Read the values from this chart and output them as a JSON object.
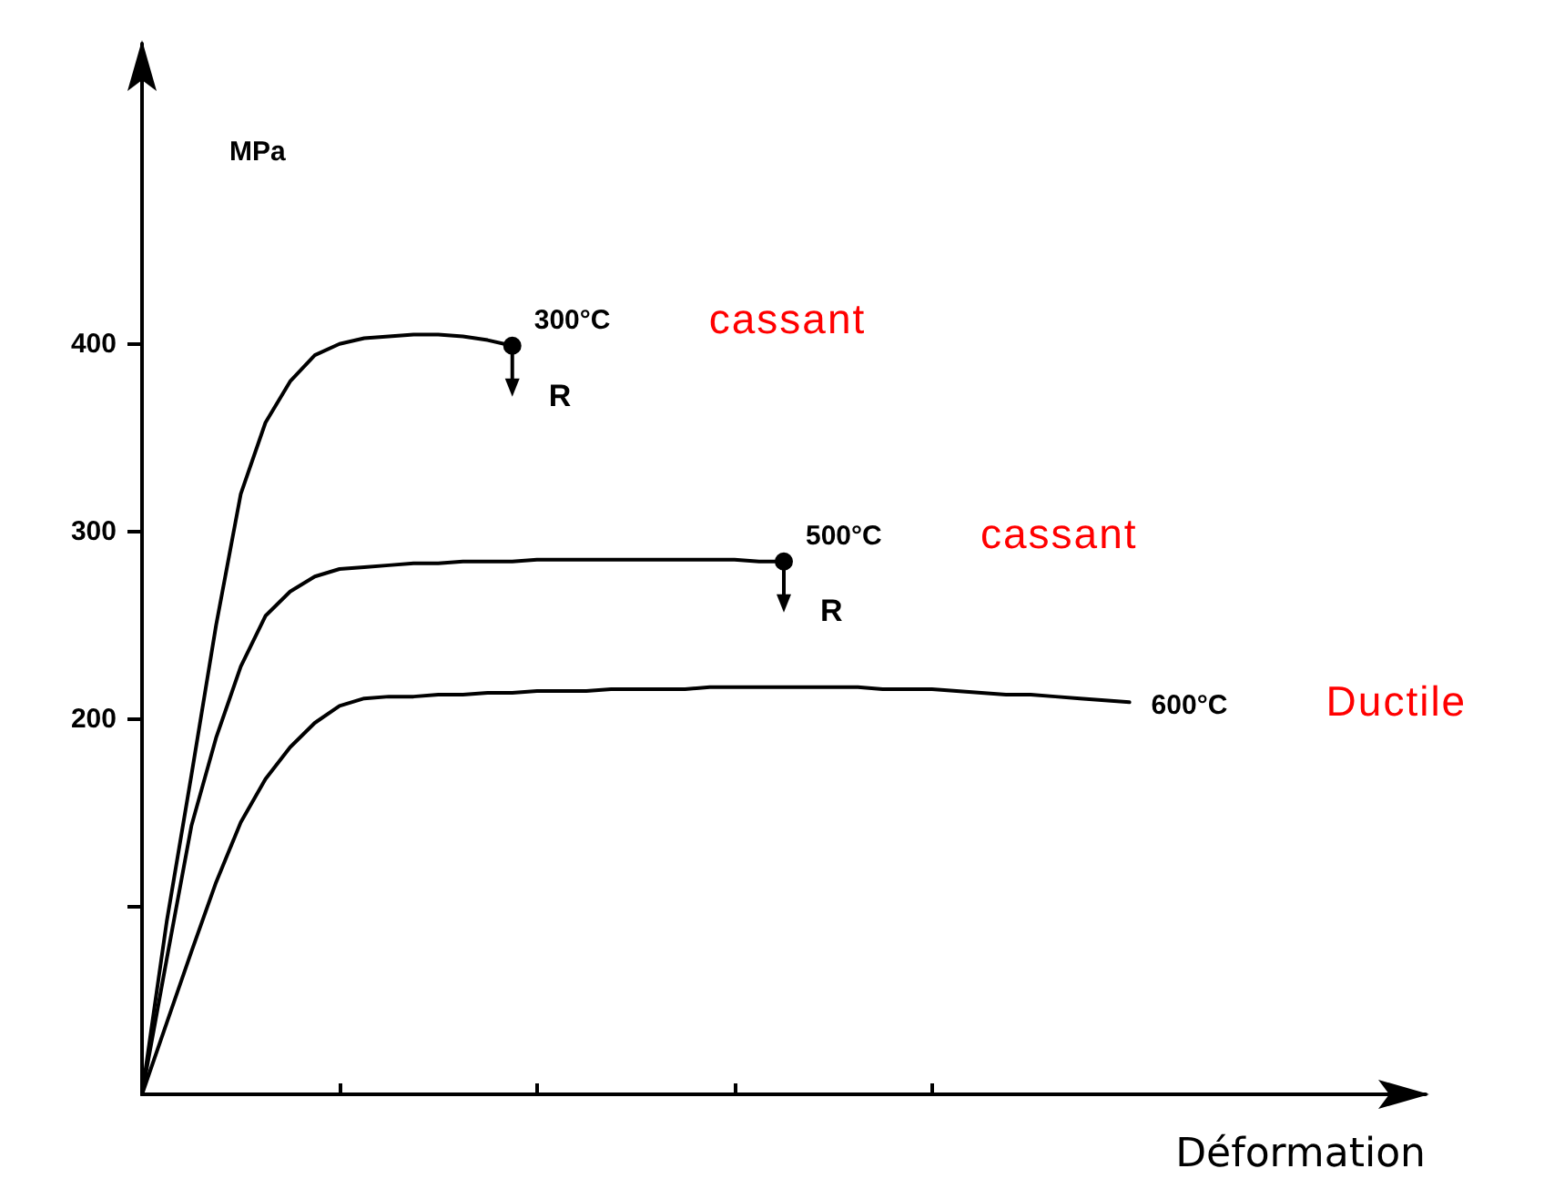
{
  "chart_data": {
    "type": "line",
    "ylabel": "MPa",
    "xlabel": "Déformation",
    "categories": [
      null,
      null,
      null,
      null,
      null,
      null,
      null,
      null,
      null,
      null,
      null,
      null,
      null,
      null,
      null,
      null,
      null,
      null,
      null,
      null,
      null,
      null,
      null,
      null,
      null,
      null,
      null,
      null,
      null,
      null,
      null,
      null,
      null,
      null,
      null,
      null,
      null,
      null,
      null,
      null,
      null,
      null,
      null,
      null,
      null,
      null,
      null,
      null,
      null,
      null,
      null,
      null,
      null
    ],
    "series": [
      {
        "name": "300°C",
        "color": "#000000",
        "values": [
          0,
          92,
          170,
          250,
          320,
          358,
          380,
          394,
          400,
          403,
          404,
          405,
          405,
          404,
          402,
          399,
          null,
          null,
          null,
          null,
          null,
          null,
          null,
          null,
          null,
          null,
          null,
          null,
          null,
          null,
          null,
          null,
          null,
          null,
          null,
          null,
          null,
          null,
          null,
          null,
          null,
          null,
          null,
          null,
          null,
          null,
          null,
          null,
          null,
          null,
          null,
          null,
          null
        ]
      },
      {
        "name": "500°C",
        "color": "#000000",
        "values": [
          0,
          72,
          143,
          190,
          228,
          255,
          268,
          276,
          280,
          281,
          282,
          283,
          283,
          284,
          284,
          284,
          285,
          285,
          285,
          285,
          285,
          285,
          285,
          285,
          285,
          284,
          284,
          null,
          null,
          null,
          null,
          null,
          null,
          null,
          null,
          null,
          null,
          null,
          null,
          null,
          null,
          null,
          null,
          null,
          null,
          null,
          null,
          null,
          null,
          null,
          null,
          null,
          null
        ]
      },
      {
        "name": "600°C",
        "color": "#000000",
        "values": [
          0,
          38,
          76,
          113,
          145,
          168,
          185,
          198,
          207,
          211,
          212,
          212,
          213,
          213,
          214,
          214,
          215,
          215,
          215,
          216,
          216,
          216,
          216,
          217,
          217,
          217,
          217,
          217,
          217,
          217,
          216,
          216,
          216,
          215,
          214,
          213,
          213,
          212,
          211,
          210,
          209,
          null,
          null,
          null,
          null,
          null,
          null,
          null,
          null,
          null,
          null,
          null,
          null
        ]
      }
    ],
    "annotations": [
      "cassant",
      "cassant",
      "Ductile",
      "R",
      "R"
    ],
    "ylim": [
      0,
      560
    ],
    "yticks": [
      {
        "value": 100,
        "label": null
      },
      200,
      300,
      400
    ],
    "grid": false,
    "legend": false,
    "marker": "none",
    "line_style": "solid"
  }
}
